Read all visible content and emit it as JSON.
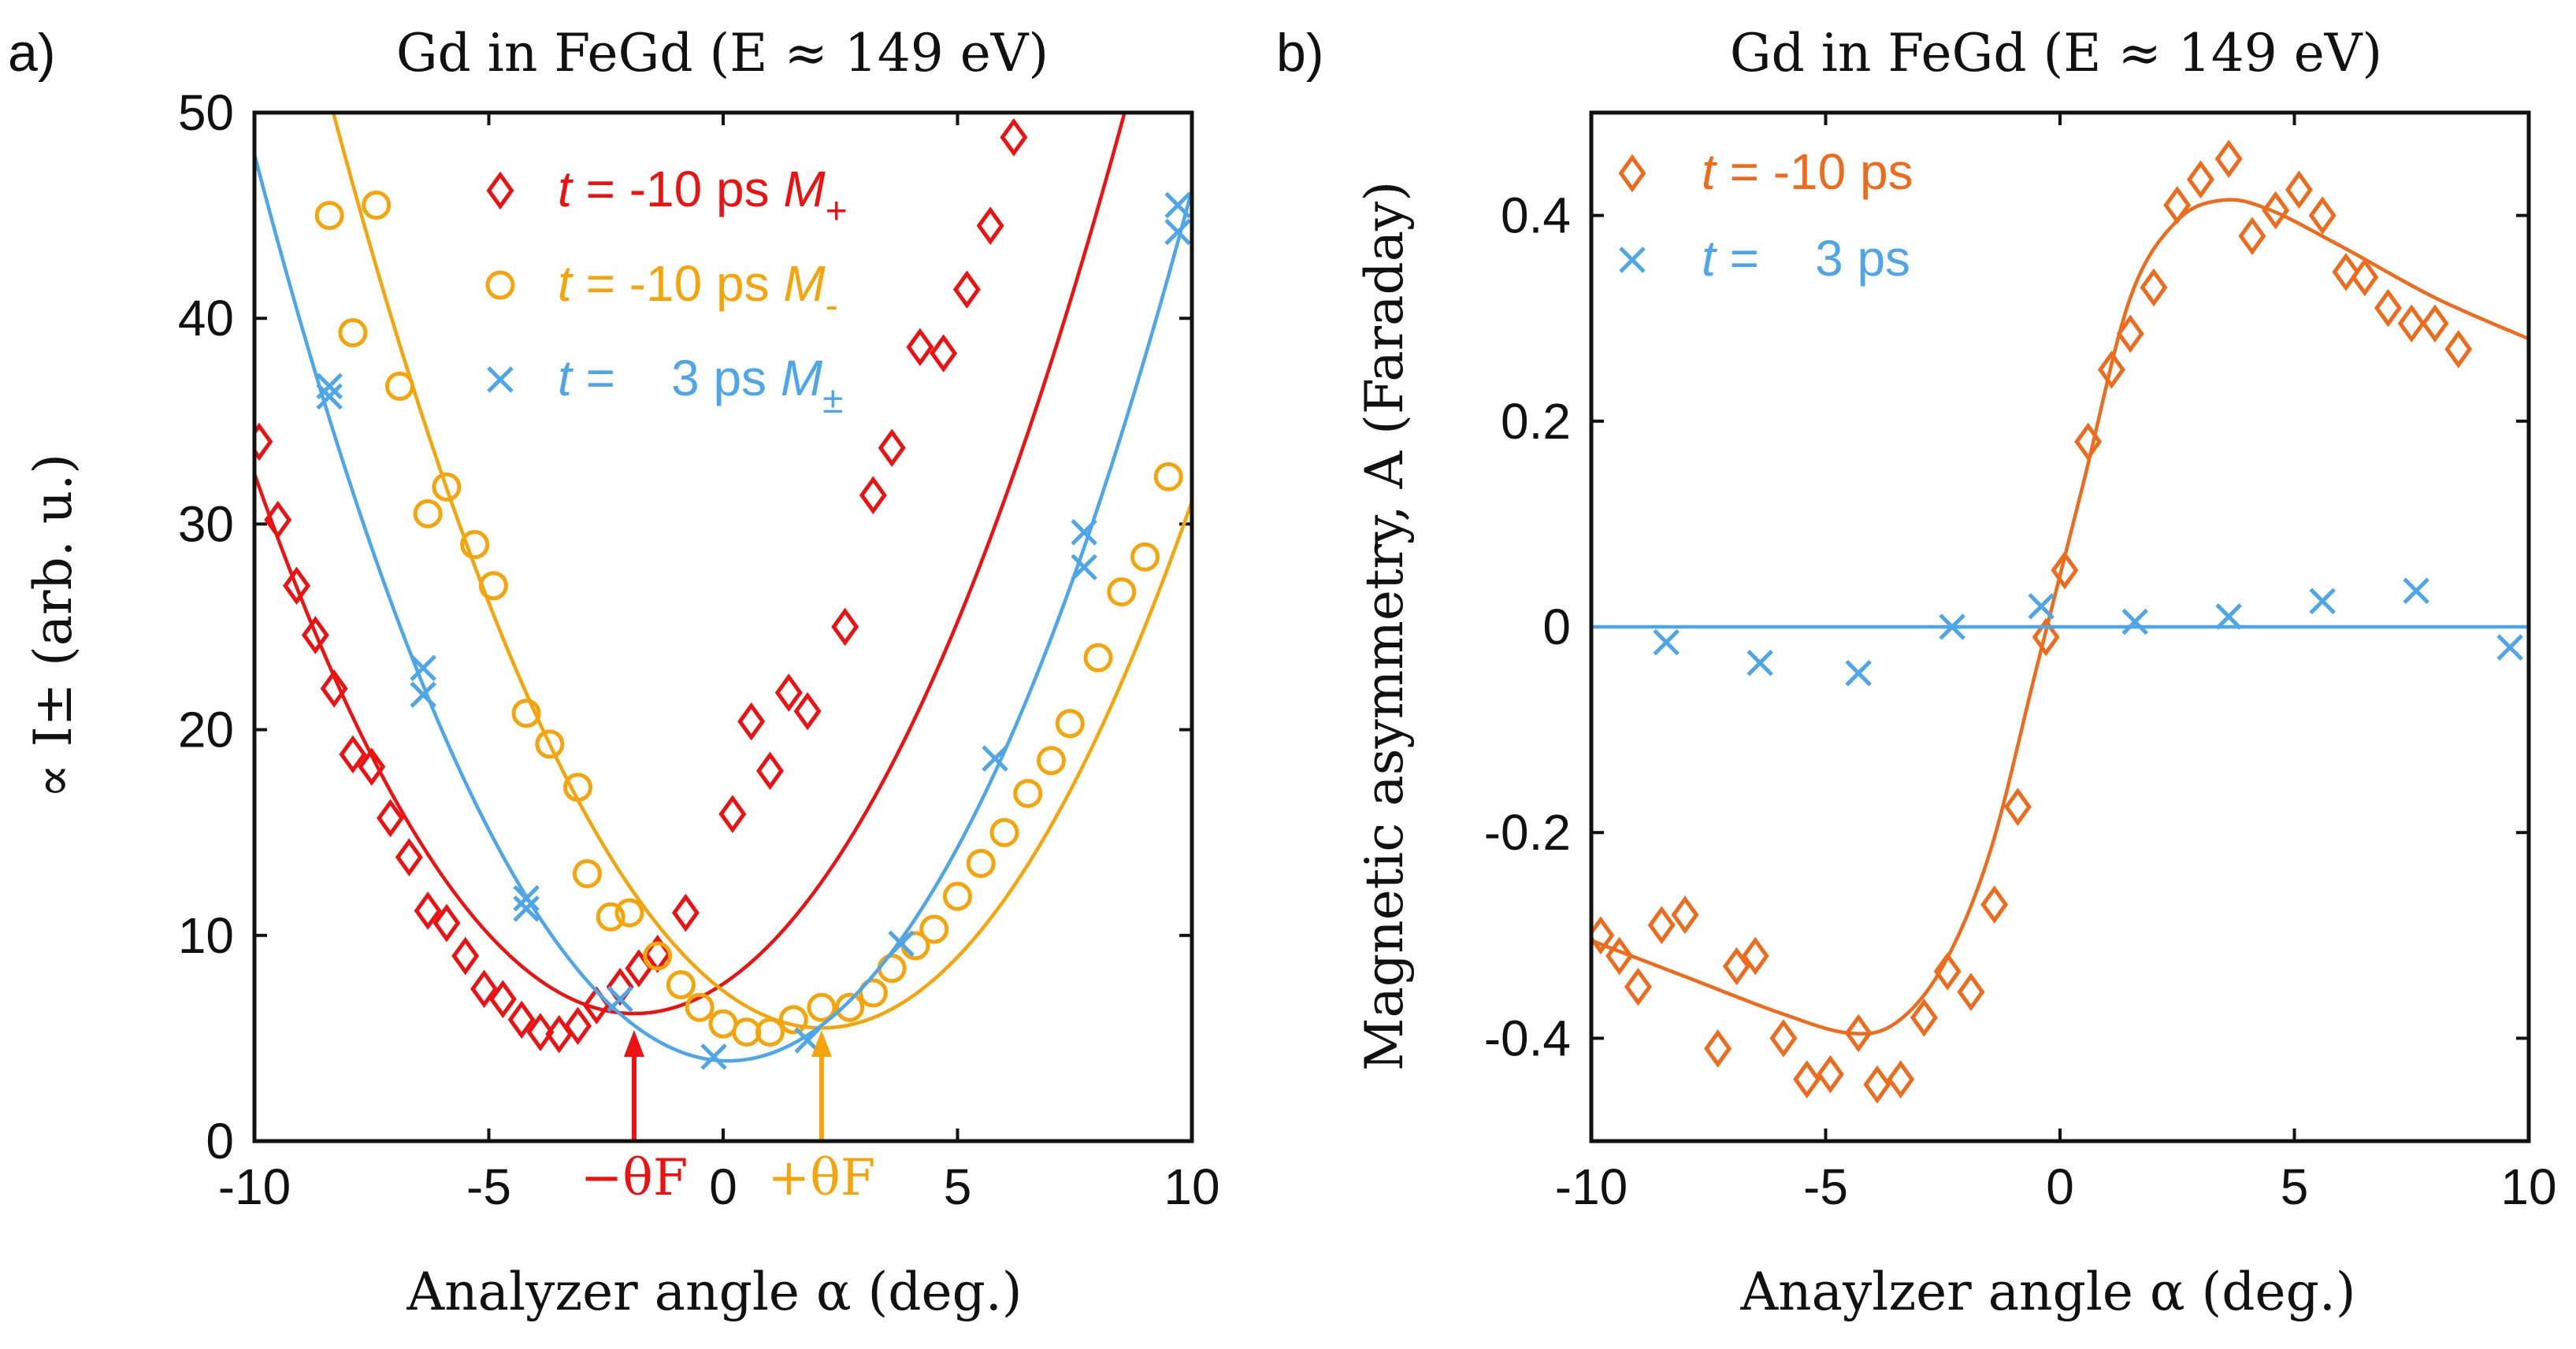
{
  "chart_data": [
    {
      "type": "scatter",
      "panel_label": "a)",
      "title": "Gd in FeGd (E ≈ 149 eV)",
      "xlabel": "Analyzer angle α (deg.)",
      "ylabel": "∝ I± (arb. u.)",
      "xlim": [
        -10,
        10
      ],
      "ylim": [
        0,
        50
      ],
      "xticks": [
        -10,
        -5,
        0,
        5,
        10
      ],
      "xtick_labels": [
        "-10",
        "-5",
        "0",
        "5",
        "10"
      ],
      "yticks": [
        0,
        10,
        20,
        30,
        40,
        50
      ],
      "ytick_labels": [
        "0",
        "10",
        "20",
        "30",
        "40",
        "50"
      ],
      "annotations": [
        {
          "text": "−θF",
          "x": -1.9,
          "color": "#ee1111"
        },
        {
          "text": "+θF",
          "x": 2.1,
          "color": "#f5a50a"
        }
      ],
      "series": [
        {
          "name": "M+",
          "legend": {
            "t": "t",
            "eq": " = -10 ps ",
            "m": "M",
            "sub": "+"
          },
          "color": "#ee1111",
          "marker": "diamond",
          "points": [
            [
              -9.9,
              34
            ],
            [
              -9.5,
              30.2
            ],
            [
              -9.1,
              27
            ],
            [
              -8.7,
              24.6
            ],
            [
              -8.3,
              22
            ],
            [
              -7.9,
              18.8
            ],
            [
              -7.5,
              18.2
            ],
            [
              -7.1,
              15.7
            ],
            [
              -6.7,
              13.8
            ],
            [
              -6.3,
              11.2
            ],
            [
              -5.9,
              10.6
            ],
            [
              -5.5,
              9
            ],
            [
              -5.1,
              7.4
            ],
            [
              -4.7,
              6.9
            ],
            [
              -4.3,
              5.9
            ],
            [
              -3.9,
              5.3
            ],
            [
              -3.5,
              5.2
            ],
            [
              -3.1,
              5.6
            ],
            [
              -2.7,
              6.6
            ],
            [
              -2.2,
              7.5
            ],
            [
              -1.8,
              8.4
            ],
            [
              -1.4,
              9.1
            ],
            [
              -0.8,
              11.1
            ],
            [
              0.2,
              15.9
            ],
            [
              0.6,
              20.4
            ],
            [
              1.0,
              18
            ],
            [
              1.4,
              21.8
            ],
            [
              1.8,
              20.9
            ],
            [
              2.6,
              25
            ],
            [
              3.2,
              31.4
            ],
            [
              3.6,
              33.7
            ],
            [
              4.2,
              38.6
            ],
            [
              4.7,
              38.3
            ],
            [
              5.2,
              41.4
            ],
            [
              5.7,
              44.5
            ],
            [
              6.2,
              48.8
            ]
          ],
          "fit": {
            "type": "quadratic",
            "x0": -1.9,
            "y0": 6.2,
            "a": 0.4
          }
        },
        {
          "name": "M-",
          "legend": {
            "t": "t",
            "eq": " = -10 ps ",
            "m": "M",
            "sub": "-"
          },
          "color": "#f5a50a",
          "marker": "circle",
          "points": [
            [
              -8.4,
              45
            ],
            [
              -7.9,
              39.3
            ],
            [
              -7.4,
              45.5
            ],
            [
              -6.9,
              36.7
            ],
            [
              -6.3,
              30.5
            ],
            [
              -5.9,
              31.8
            ],
            [
              -5.3,
              29
            ],
            [
              -4.9,
              27
            ],
            [
              -4.2,
              20.8
            ],
            [
              -3.7,
              19.3
            ],
            [
              -3.1,
              17.2
            ],
            [
              -2.9,
              13
            ],
            [
              -2.4,
              10.9
            ],
            [
              -2.0,
              11.1
            ],
            [
              -1.4,
              9
            ],
            [
              -0.9,
              7.6
            ],
            [
              -0.5,
              6.5
            ],
            [
              0.0,
              5.7
            ],
            [
              0.5,
              5.3
            ],
            [
              1.0,
              5.3
            ],
            [
              1.5,
              5.9
            ],
            [
              2.1,
              6.5
            ],
            [
              2.7,
              6.5
            ],
            [
              3.2,
              7.2
            ],
            [
              3.6,
              8.4
            ],
            [
              4.1,
              9.5
            ],
            [
              4.5,
              10.3
            ],
            [
              5.0,
              11.9
            ],
            [
              5.5,
              13.5
            ],
            [
              6.0,
              15
            ],
            [
              6.5,
              16.9
            ],
            [
              7.0,
              18.5
            ],
            [
              7.4,
              20.3
            ],
            [
              8.0,
              23.5
            ],
            [
              8.5,
              26.7
            ],
            [
              9.0,
              28.4
            ],
            [
              9.5,
              32.3
            ]
          ],
          "fit": {
            "type": "quadratic",
            "x0": 2.1,
            "y0": 5.5,
            "a": 0.41
          }
        },
        {
          "name": "M±",
          "legend": {
            "t": "t",
            "eq": " =    3 ps ",
            "m": "M",
            "sub": "±"
          },
          "color": "#4da6e8",
          "marker": "x",
          "points": [
            [
              -8.4,
              36.7
            ],
            [
              -8.4,
              36.2
            ],
            [
              -6.4,
              23
            ],
            [
              -6.4,
              21.7
            ],
            [
              -4.2,
              11.8
            ],
            [
              -4.2,
              11.3
            ],
            [
              -2.2,
              6.9
            ],
            [
              -0.2,
              4.1
            ],
            [
              1.8,
              4.9
            ],
            [
              3.8,
              9.6
            ],
            [
              5.8,
              18.6
            ],
            [
              7.7,
              29.6
            ],
            [
              7.7,
              27.9
            ],
            [
              9.7,
              45.5
            ],
            [
              9.7,
              44.2
            ]
          ],
          "fit": {
            "type": "quadratic",
            "x0": 0.1,
            "y0": 3.9,
            "a": 0.432
          }
        }
      ]
    },
    {
      "type": "scatter",
      "panel_label": "b)",
      "title": "Gd in FeGd (E ≈ 149 eV)",
      "xlabel": "Anaylzer angle α (deg.)",
      "ylabel": "Magnetic asymmetry, A (Faraday)",
      "xlim": [
        -10,
        10
      ],
      "ylim": [
        -0.5,
        0.5
      ],
      "xticks": [
        -10,
        -5,
        0,
        5,
        10
      ],
      "xtick_labels": [
        "-10",
        "-5",
        "0",
        "5",
        "10"
      ],
      "yticks": [
        -0.4,
        -0.2,
        0,
        0.2,
        0.4
      ],
      "ytick_labels": [
        "-0.4",
        "-0.2",
        "0",
        "0.2",
        "0.4"
      ],
      "series": [
        {
          "name": "t = -10 ps",
          "legend": {
            "t": "t",
            "eq": " = -10 ps"
          },
          "color": "#ef6a1a",
          "marker": "diamond",
          "points": [
            [
              -9.8,
              -0.3
            ],
            [
              -9.4,
              -0.32
            ],
            [
              -9.0,
              -0.35
            ],
            [
              -8.5,
              -0.29
            ],
            [
              -8.0,
              -0.28
            ],
            [
              -7.3,
              -0.41
            ],
            [
              -6.9,
              -0.33
            ],
            [
              -6.5,
              -0.32
            ],
            [
              -5.9,
              -0.4
            ],
            [
              -5.4,
              -0.44
            ],
            [
              -4.9,
              -0.435
            ],
            [
              -4.3,
              -0.395
            ],
            [
              -3.9,
              -0.445
            ],
            [
              -3.4,
              -0.44
            ],
            [
              -2.9,
              -0.38
            ],
            [
              -2.4,
              -0.335
            ],
            [
              -1.9,
              -0.355
            ],
            [
              -1.4,
              -0.27
            ],
            [
              -0.9,
              -0.175
            ],
            [
              -0.3,
              -0.01
            ],
            [
              0.1,
              0.055
            ],
            [
              0.6,
              0.18
            ],
            [
              1.1,
              0.25
            ],
            [
              1.5,
              0.285
            ],
            [
              2.0,
              0.33
            ],
            [
              2.5,
              0.41
            ],
            [
              3.0,
              0.435
            ],
            [
              3.6,
              0.455
            ],
            [
              4.1,
              0.38
            ],
            [
              4.6,
              0.405
            ],
            [
              5.1,
              0.425
            ],
            [
              5.6,
              0.4
            ],
            [
              6.1,
              0.345
            ],
            [
              6.5,
              0.34
            ],
            [
              7.0,
              0.31
            ],
            [
              7.5,
              0.295
            ],
            [
              8.0,
              0.295
            ],
            [
              8.5,
              0.27
            ]
          ],
          "fit": [
            [
              -10,
              -0.305
            ],
            [
              -8,
              -0.34
            ],
            [
              -6,
              -0.375
            ],
            [
              -4.5,
              -0.395
            ],
            [
              -3.5,
              -0.385
            ],
            [
              -2.5,
              -0.33
            ],
            [
              -1.5,
              -0.22
            ],
            [
              -0.5,
              -0.04
            ],
            [
              0.5,
              0.14
            ],
            [
              1.5,
              0.32
            ],
            [
              2.5,
              0.395
            ],
            [
              3.5,
              0.415
            ],
            [
              4.5,
              0.405
            ],
            [
              6,
              0.37
            ],
            [
              8,
              0.32
            ],
            [
              10,
              0.28
            ]
          ]
        },
        {
          "name": "t = 3 ps",
          "legend": {
            "t": "t",
            "eq": " =    3 ps"
          },
          "color": "#4da6e8",
          "marker": "x",
          "points": [
            [
              -8.4,
              -0.015
            ],
            [
              -6.4,
              -0.035
            ],
            [
              -4.3,
              -0.045
            ],
            [
              -2.3,
              0.0
            ],
            [
              -0.4,
              0.02
            ],
            [
              1.6,
              0.005
            ],
            [
              3.6,
              0.01
            ],
            [
              5.6,
              0.025
            ],
            [
              7.6,
              0.035
            ],
            [
              9.6,
              -0.02
            ]
          ],
          "fit": [
            [
              -10,
              0
            ],
            [
              10,
              0
            ]
          ]
        }
      ]
    }
  ]
}
